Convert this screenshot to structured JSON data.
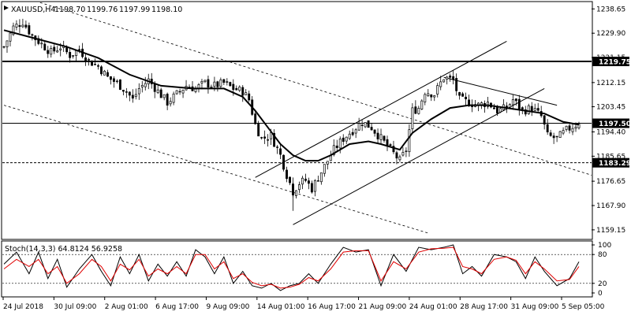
{
  "chart_data": [
    {
      "type": "candlestick",
      "symbol": "XAUUSD,H4",
      "ohlc_values": [
        "1198.70",
        "1199.76",
        "1197.99",
        "1198.10"
      ],
      "ylim": [
        1156,
        1241
      ],
      "y_ticks": [
        1238.65,
        1229.9,
        1221.15,
        1212.15,
        1203.45,
        1194.4,
        1185.65,
        1176.65,
        1167.9,
        1159.15
      ],
      "x_tick_labels": [
        "24 Jul 2018",
        "30 Jul 09:00",
        "2 Aug 01:00",
        "6 Aug 17:00",
        "9 Aug 09:00",
        "14 Aug 01:00",
        "16 Aug 17:00",
        "21 Aug 09:00",
        "24 Aug 01:00",
        "28 Aug 17:00",
        "31 Aug 09:00",
        "5 Sep 05:00"
      ],
      "price_levels": [
        {
          "value": 1219.75,
          "label": "1219.75",
          "style": "thick"
        },
        {
          "value": 1197.5,
          "label": "1197.50",
          "style": "solid"
        },
        {
          "value": 1183.29,
          "label": "1183.29",
          "style": "dashed"
        }
      ],
      "close_path": [
        [
          0,
          1225
        ],
        [
          3,
          1232
        ],
        [
          6,
          1234
        ],
        [
          9,
          1229
        ],
        [
          12,
          1226
        ],
        [
          15,
          1223
        ],
        [
          18,
          1225
        ],
        [
          21,
          1222
        ],
        [
          24,
          1224
        ],
        [
          27,
          1220
        ],
        [
          30,
          1218
        ],
        [
          33,
          1214
        ],
        [
          36,
          1212
        ],
        [
          39,
          1209
        ],
        [
          41,
          1206
        ],
        [
          43,
          1210
        ],
        [
          46,
          1213
        ],
        [
          49,
          1209
        ],
        [
          52,
          1205
        ],
        [
          55,
          1208
        ],
        [
          58,
          1211
        ],
        [
          61,
          1210
        ],
        [
          64,
          1212
        ],
        [
          67,
          1211
        ],
        [
          70,
          1212
        ],
        [
          73,
          1210
        ],
        [
          76,
          1209
        ],
        [
          78,
          1206
        ],
        [
          80,
          1197
        ],
        [
          82,
          1192
        ],
        [
          85,
          1193
        ],
        [
          88,
          1186
        ],
        [
          90,
          1179
        ],
        [
          92,
          1173
        ],
        [
          94,
          1176
        ],
        [
          96,
          1177
        ],
        [
          98,
          1174
        ],
        [
          100,
          1178
        ],
        [
          102,
          1182
        ],
        [
          105,
          1188
        ],
        [
          108,
          1192
        ],
        [
          111,
          1195
        ],
        [
          114,
          1198
        ],
        [
          117,
          1196
        ],
        [
          120,
          1192
        ],
        [
          123,
          1188
        ],
        [
          126,
          1184
        ],
        [
          128,
          1188
        ],
        [
          130,
          1202
        ],
        [
          132,
          1203
        ],
        [
          134,
          1209
        ],
        [
          137,
          1208
        ],
        [
          140,
          1214
        ],
        [
          143,
          1213
        ],
        [
          145,
          1206
        ],
        [
          148,
          1205
        ],
        [
          151,
          1204
        ],
        [
          154,
          1205
        ],
        [
          157,
          1202
        ],
        [
          160,
          1203
        ],
        [
          162,
          1206
        ],
        [
          165,
          1202
        ],
        [
          168,
          1203
        ],
        [
          171,
          1200
        ],
        [
          173,
          1193
        ],
        [
          176,
          1192
        ],
        [
          179,
          1195
        ],
        [
          182,
          1197
        ],
        [
          183,
          1198
        ]
      ],
      "moving_average": [
        [
          0,
          1231
        ],
        [
          10,
          1228
        ],
        [
          20,
          1225
        ],
        [
          30,
          1221
        ],
        [
          40,
          1215
        ],
        [
          50,
          1211
        ],
        [
          60,
          1210
        ],
        [
          70,
          1210
        ],
        [
          76,
          1207
        ],
        [
          80,
          1202
        ],
        [
          84,
          1196
        ],
        [
          88,
          1190
        ],
        [
          92,
          1186
        ],
        [
          96,
          1184
        ],
        [
          100,
          1184
        ],
        [
          104,
          1186
        ],
        [
          110,
          1190
        ],
        [
          116,
          1191
        ],
        [
          120,
          1190
        ],
        [
          126,
          1188
        ],
        [
          130,
          1194
        ],
        [
          136,
          1199
        ],
        [
          142,
          1203
        ],
        [
          148,
          1204
        ],
        [
          154,
          1204
        ],
        [
          160,
          1203
        ],
        [
          166,
          1202
        ],
        [
          172,
          1201
        ],
        [
          178,
          1198
        ],
        [
          183,
          1197
        ]
      ],
      "trend_lines": [
        {
          "name": "channel-upper",
          "style": "solid",
          "from": [
            80,
            1178
          ],
          "to": [
            160,
            1227
          ]
        },
        {
          "name": "channel-lower",
          "style": "solid",
          "from": [
            92,
            1161
          ],
          "to": [
            172,
            1210
          ]
        },
        {
          "name": "resistance-line",
          "style": "solid",
          "from": [
            140,
            1214
          ],
          "to": [
            176,
            1204
          ]
        },
        {
          "name": "descending-upper",
          "style": "dotted",
          "from": [
            0,
            1245
          ],
          "to": [
            195,
            1176
          ]
        },
        {
          "name": "descending-lower",
          "style": "dotted",
          "from": [
            0,
            1204
          ],
          "to": [
            135,
            1158
          ]
        }
      ]
    },
    {
      "type": "line",
      "title": "Stoch(14,3,3) 64.8124 56.9258",
      "ylim": [
        0,
        100
      ],
      "y_ticks": [
        100,
        80,
        20,
        0
      ],
      "series": [
        {
          "color": "#000000",
          "points": [
            [
              0,
              60
            ],
            [
              4,
              85
            ],
            [
              8,
              40
            ],
            [
              11,
              85
            ],
            [
              14,
              30
            ],
            [
              17,
              70
            ],
            [
              20,
              12
            ],
            [
              24,
              50
            ],
            [
              28,
              80
            ],
            [
              31,
              45
            ],
            [
              34,
              15
            ],
            [
              37,
              75
            ],
            [
              40,
              40
            ],
            [
              43,
              80
            ],
            [
              46,
              25
            ],
            [
              49,
              60
            ],
            [
              52,
              35
            ],
            [
              55,
              65
            ],
            [
              58,
              35
            ],
            [
              61,
              90
            ],
            [
              64,
              75
            ],
            [
              67,
              40
            ],
            [
              70,
              75
            ],
            [
              73,
              20
            ],
            [
              76,
              45
            ],
            [
              79,
              15
            ],
            [
              82,
              10
            ],
            [
              85,
              20
            ],
            [
              88,
              5
            ],
            [
              91,
              15
            ],
            [
              94,
              20
            ],
            [
              97,
              40
            ],
            [
              100,
              20
            ],
            [
              104,
              60
            ],
            [
              108,
              95
            ],
            [
              112,
              85
            ],
            [
              116,
              90
            ],
            [
              120,
              15
            ],
            [
              124,
              80
            ],
            [
              128,
              45
            ],
            [
              132,
              95
            ],
            [
              136,
              90
            ],
            [
              140,
              95
            ],
            [
              143,
              100
            ],
            [
              146,
              40
            ],
            [
              149,
              55
            ],
            [
              152,
              35
            ],
            [
              156,
              80
            ],
            [
              160,
              75
            ],
            [
              163,
              65
            ],
            [
              166,
              30
            ],
            [
              169,
              75
            ],
            [
              172,
              45
            ],
            [
              176,
              15
            ],
            [
              180,
              30
            ],
            [
              183,
              65
            ]
          ]
        },
        {
          "color": "#e00000",
          "points": [
            [
              0,
              50
            ],
            [
              4,
              70
            ],
            [
              8,
              55
            ],
            [
              11,
              70
            ],
            [
              14,
              40
            ],
            [
              17,
              55
            ],
            [
              20,
              20
            ],
            [
              24,
              40
            ],
            [
              28,
              70
            ],
            [
              31,
              55
            ],
            [
              34,
              25
            ],
            [
              37,
              60
            ],
            [
              40,
              48
            ],
            [
              43,
              70
            ],
            [
              46,
              35
            ],
            [
              49,
              50
            ],
            [
              52,
              40
            ],
            [
              55,
              55
            ],
            [
              58,
              40
            ],
            [
              61,
              80
            ],
            [
              64,
              80
            ],
            [
              67,
              50
            ],
            [
              70,
              65
            ],
            [
              73,
              30
            ],
            [
              76,
              40
            ],
            [
              79,
              22
            ],
            [
              82,
              15
            ],
            [
              85,
              18
            ],
            [
              88,
              10
            ],
            [
              91,
              12
            ],
            [
              94,
              18
            ],
            [
              97,
              32
            ],
            [
              100,
              25
            ],
            [
              104,
              50
            ],
            [
              108,
              85
            ],
            [
              112,
              88
            ],
            [
              116,
              88
            ],
            [
              120,
              25
            ],
            [
              124,
              65
            ],
            [
              128,
              50
            ],
            [
              132,
              85
            ],
            [
              136,
              92
            ],
            [
              140,
              93
            ],
            [
              143,
              95
            ],
            [
              146,
              55
            ],
            [
              149,
              50
            ],
            [
              152,
              40
            ],
            [
              156,
              70
            ],
            [
              160,
              75
            ],
            [
              163,
              68
            ],
            [
              166,
              40
            ],
            [
              169,
              65
            ],
            [
              172,
              50
            ],
            [
              176,
              25
            ],
            [
              180,
              28
            ],
            [
              183,
              55
            ]
          ]
        }
      ]
    }
  ]
}
